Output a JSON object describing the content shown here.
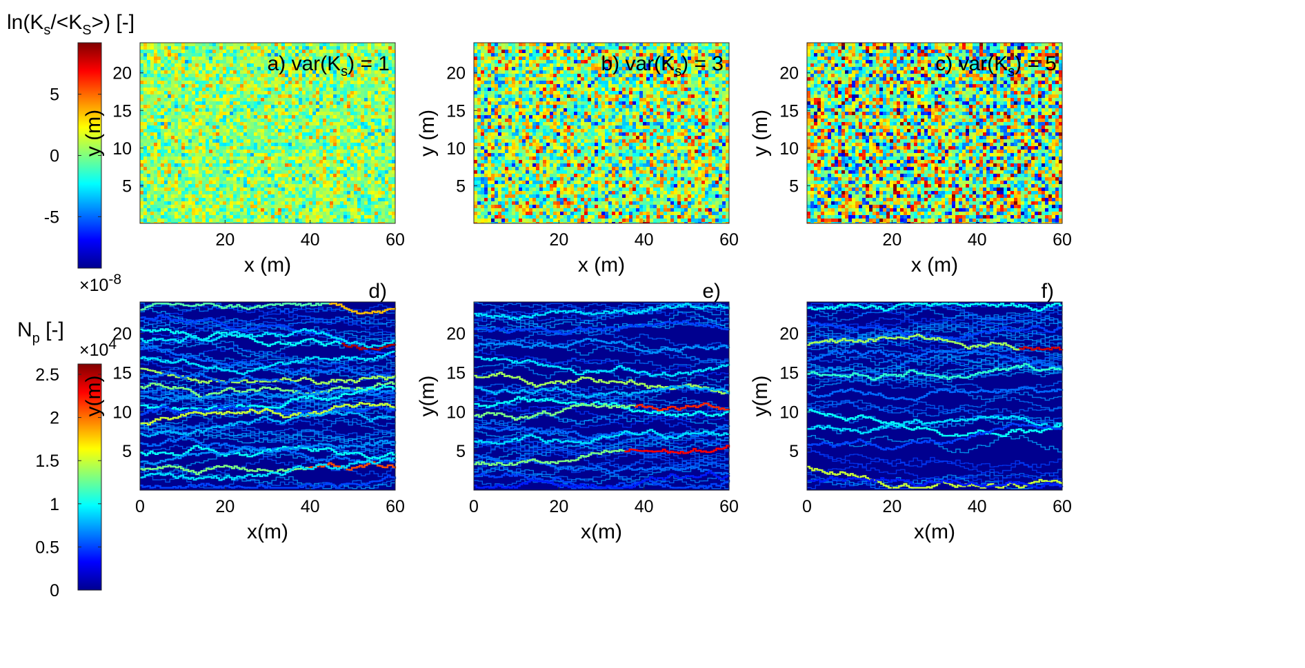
{
  "colors": {
    "colormap": "jet",
    "field_base": "#9ce28a",
    "trace_background": "#00008f",
    "axis": "#262626"
  },
  "colorbar_top": {
    "label": "ln(Ks/<KS>) [-]",
    "label_parts": [
      "ln(K",
      "s",
      "/<K",
      "S",
      ">) [-]"
    ],
    "ticks": [
      "5",
      "0",
      "-5"
    ],
    "range": [
      -9.2,
      9.2
    ],
    "exponent_parts": [
      "×10",
      "-8"
    ]
  },
  "colorbar_bottom": {
    "label": "Np [-]",
    "label_parts": [
      "N",
      "p",
      " [-]"
    ],
    "ticks": [
      "2.5",
      "2",
      "1.5",
      "1",
      "0.5",
      "0"
    ],
    "range": [
      0,
      2.62
    ],
    "exponent_parts": [
      "×10",
      "4"
    ]
  },
  "chart_data": [
    {
      "type": "heatmap",
      "panel": "a",
      "annotation": "a) var(Ks) = 1",
      "annotation_parts": [
        "a) var(K",
        "s",
        ") = 1"
      ],
      "variance": 1,
      "xlabel": "x (m)",
      "ylabel": "y (m)",
      "xlim": [
        0,
        60
      ],
      "ylim": [
        0,
        24
      ],
      "xticks": [
        "20",
        "40",
        "60"
      ],
      "yticks": [
        "5",
        "10",
        "15",
        "20"
      ]
    },
    {
      "type": "heatmap",
      "panel": "b",
      "annotation": "b) var(Ks) = 3",
      "annotation_parts": [
        "b) var(K",
        "s",
        ") = 3"
      ],
      "variance": 3,
      "xlabel": "x (m)",
      "ylabel": "y (m)",
      "xlim": [
        0,
        60
      ],
      "ylim": [
        0,
        24
      ],
      "xticks": [
        "20",
        "40",
        "60"
      ],
      "yticks": [
        "5",
        "10",
        "15",
        "20"
      ]
    },
    {
      "type": "heatmap",
      "panel": "c",
      "annotation": "c) var(Ks) = 5",
      "annotation_parts": [
        "c) var(K",
        "s",
        ") = 5"
      ],
      "variance": 5,
      "xlabel": "x (m)",
      "ylabel": "y (m)",
      "xlim": [
        0,
        60
      ],
      "ylim": [
        0,
        24
      ],
      "xticks": [
        "20",
        "40",
        "60"
      ],
      "yticks": [
        "5",
        "10",
        "15",
        "20"
      ]
    },
    {
      "type": "heatmap",
      "panel": "d",
      "annotation": "d)",
      "xlabel": "x(m)",
      "ylabel": "y(m)",
      "xlim": [
        0,
        60
      ],
      "ylim": [
        0,
        24
      ],
      "xticks": [
        "0",
        "20",
        "40",
        "60"
      ],
      "yticks": [
        "5",
        "10",
        "15",
        "20"
      ],
      "streamlines": [
        {
          "y0": 23.0,
          "level": 1.2,
          "hot_from": 45,
          "hot_level": 1.8
        },
        {
          "y0": 22.0,
          "level": 0.5
        },
        {
          "y0": 20.5,
          "level": 1.0,
          "hot_from": 48,
          "hot_level": 2.5
        },
        {
          "y0": 19.3,
          "level": 0.9
        },
        {
          "y0": 18.0,
          "level": 0.6
        },
        {
          "y0": 16.8,
          "level": 0.9
        },
        {
          "y0": 15.5,
          "level": 1.4
        },
        {
          "y0": 14.3,
          "level": 0.6
        },
        {
          "y0": 13.2,
          "level": 1.3
        },
        {
          "y0": 12.0,
          "level": 0.7
        },
        {
          "y0": 10.8,
          "level": 1.0
        },
        {
          "y0": 9.6,
          "level": 0.5
        },
        {
          "y0": 8.5,
          "level": 1.5
        },
        {
          "y0": 7.2,
          "level": 0.8
        },
        {
          "y0": 6.0,
          "level": 0.6
        },
        {
          "y0": 4.8,
          "level": 1.0
        },
        {
          "y0": 3.6,
          "level": 0.7
        },
        {
          "y0": 2.7,
          "level": 1.3,
          "hot_from": 40,
          "hot_level": 2.1
        },
        {
          "y0": 1.6,
          "level": 0.9
        },
        {
          "y0": 0.6,
          "level": 0.5
        }
      ]
    },
    {
      "type": "heatmap",
      "panel": "e",
      "annotation": "e)",
      "xlabel": "x(m)",
      "ylabel": "y(m)",
      "xlim": [
        0,
        60
      ],
      "ylim": [
        0,
        24
      ],
      "xticks": [
        "0",
        "20",
        "40",
        "60"
      ],
      "yticks": [
        "5",
        "10",
        "15",
        "20"
      ],
      "streamlines": [
        {
          "y0": 22.5,
          "level": 0.9
        },
        {
          "y0": 20.5,
          "level": 0.5
        },
        {
          "y0": 18.5,
          "level": 0.7
        },
        {
          "y0": 17.0,
          "level": 0.9
        },
        {
          "y0": 14.6,
          "level": 1.4
        },
        {
          "y0": 13.2,
          "level": 0.8
        },
        {
          "y0": 11.0,
          "level": 1.0
        },
        {
          "y0": 9.5,
          "level": 1.3,
          "hot_from": 38,
          "hot_level": 2.2
        },
        {
          "y0": 8.0,
          "level": 0.6
        },
        {
          "y0": 6.2,
          "level": 0.9
        },
        {
          "y0": 4.5,
          "level": 0.6
        },
        {
          "y0": 3.3,
          "level": 1.3,
          "hot_from": 36,
          "hot_level": 2.3
        },
        {
          "y0": 1.8,
          "level": 0.5
        },
        {
          "y0": 0.6,
          "level": 0.4
        }
      ]
    },
    {
      "type": "heatmap",
      "panel": "f",
      "annotation": "f)",
      "xlabel": "x(m)",
      "ylabel": "y(m)",
      "xlim": [
        0,
        60
      ],
      "ylim": [
        0,
        24
      ],
      "xticks": [
        "0",
        "20",
        "40",
        "60"
      ],
      "yticks": [
        "5",
        "10",
        "15",
        "20"
      ],
      "streamlines": [
        {
          "y0": 23.2,
          "level": 1.0
        },
        {
          "y0": 21.5,
          "level": 0.5
        },
        {
          "y0": 18.5,
          "level": 1.4,
          "hot_from": 50,
          "hot_level": 2.4
        },
        {
          "y0": 16.5,
          "level": 0.6
        },
        {
          "y0": 14.8,
          "level": 1.1
        },
        {
          "y0": 12.5,
          "level": 0.6
        },
        {
          "y0": 10.0,
          "level": 1.0
        },
        {
          "y0": 7.8,
          "level": 0.9
        },
        {
          "y0": 5.8,
          "level": 0.5
        },
        {
          "y0": 3.0,
          "level": 1.5
        },
        {
          "y0": 1.2,
          "level": 0.4
        }
      ]
    }
  ]
}
